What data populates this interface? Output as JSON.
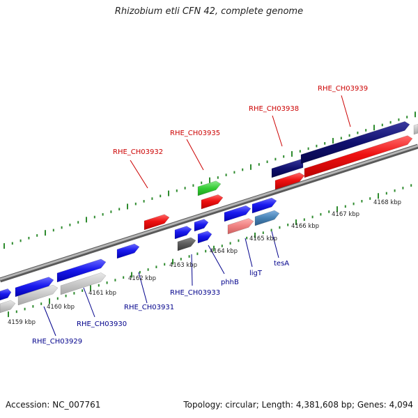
{
  "title": "Rhizobium etli CFN 42, complete genome",
  "footer": {
    "accession": "Accession: NC_007761",
    "topology": "Topology: circular; Length: 4,381,608 bp; Genes: 4,094"
  },
  "ruler": [
    "4159 kbp",
    "4160 kbp",
    "4161 kbp",
    "4162 kbp",
    "4163 kbp",
    "4164 kbp",
    "4165 kbp",
    "4166 kbp",
    "4167 kbp",
    "4168 kbp"
  ],
  "upper_labels": [
    "RHE_CH03932",
    "RHE_CH03935",
    "RHE_CH03938",
    "RHE_CH03939"
  ],
  "lower_labels": [
    "RHE_CH03929",
    "RHE_CH03930",
    "RHE_CH03931",
    "RHE_CH03933",
    "phhB",
    "ligT",
    "tesA"
  ],
  "colors": {
    "upper_label": "#cc0000",
    "lower_label": "#00008b",
    "tick": "#2e8b2e",
    "backbone": "#8a8a8a"
  }
}
